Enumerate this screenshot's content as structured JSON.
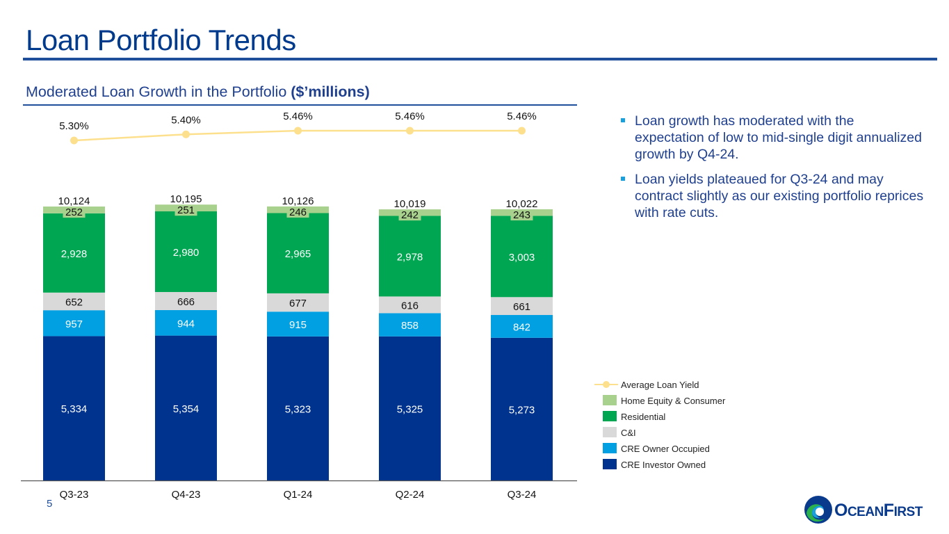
{
  "header": {
    "title": "Loan Portfolio Trends",
    "subtitle_main": "Moderated Loan Growth in the Portfolio ",
    "subtitle_bold": "($’millions)"
  },
  "bullets": [
    "Loan growth has moderated with the expectation of low to mid-single digit annualized growth by Q4-24.",
    "Loan yields plateaued for Q3-24 and may contract slightly as our existing portfolio reprices with rate cuts."
  ],
  "legend": [
    {
      "label": "Average Loan Yield",
      "type": "line",
      "color": "#fde08e"
    },
    {
      "label": "Home Equity & Consumer",
      "type": "box",
      "color": "#a9d18e"
    },
    {
      "label": "Residential",
      "type": "box",
      "color": "#00a651"
    },
    {
      "label": "C&I",
      "type": "box",
      "color": "#d9d9d9"
    },
    {
      "label": "CRE Owner Occupied",
      "type": "box",
      "color": "#00a0e3"
    },
    {
      "label": "CRE Investor Owned",
      "type": "box",
      "color": "#00338d"
    }
  ],
  "footer": {
    "page_number": "5",
    "logo_text_big1": "O",
    "logo_text_small1": "CEAN",
    "logo_text_big2": "F",
    "logo_text_small2": "IRST"
  },
  "chart_data": {
    "type": "bar",
    "stacked": true,
    "title": "Moderated Loan Growth in the Portfolio ($’millions)",
    "categories": [
      "Q3-23",
      "Q4-23",
      "Q1-24",
      "Q2-24",
      "Q3-24"
    ],
    "series": [
      {
        "name": "CRE Investor Owned",
        "color": "#00338d",
        "label_color": "#ffffff",
        "values": [
          5334,
          5354,
          5323,
          5325,
          5273
        ]
      },
      {
        "name": "CRE Owner Occupied",
        "color": "#00a0e3",
        "label_color": "#ffffff",
        "values": [
          957,
          944,
          915,
          858,
          842
        ]
      },
      {
        "name": "C&I",
        "color": "#d9d9d9",
        "label_color": "#111111",
        "values": [
          652,
          666,
          677,
          616,
          661
        ]
      },
      {
        "name": "Residential",
        "color": "#00a651",
        "label_color": "#ffffff",
        "values": [
          2928,
          2980,
          2965,
          2978,
          3003
        ]
      },
      {
        "name": "Home Equity & Consumer",
        "color": "#a9d18e",
        "label_color": "#111111",
        "values": [
          252,
          251,
          246,
          242,
          243
        ]
      }
    ],
    "totals": [
      10124,
      10195,
      10126,
      10019,
      10022
    ],
    "totals_labels": [
      "10,124",
      "10,195",
      "10,126",
      "10,019",
      "10,022"
    ],
    "line_series": {
      "name": "Average Loan Yield",
      "color": "#fde08e",
      "values": [
        5.3,
        5.4,
        5.46,
        5.46,
        5.46
      ],
      "labels": [
        "5.30%",
        "5.40%",
        "5.46%",
        "5.46%",
        "5.46%"
      ]
    },
    "xlabel": "",
    "ylabel": "",
    "ylim": [
      0,
      10300
    ],
    "grid": false,
    "legend_position": "bottom-right"
  }
}
